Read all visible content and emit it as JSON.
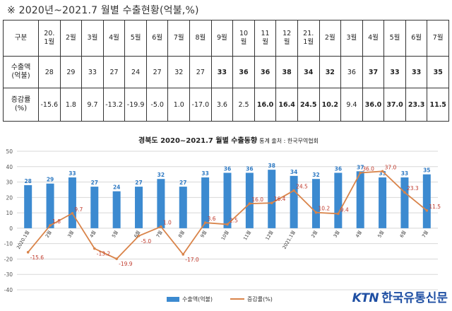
{
  "header": {
    "title": "※ 2020년~2021.7 월별 수출현황(억불,%)"
  },
  "table": {
    "label_col": "구분",
    "months": [
      "20.\n1월",
      "2월",
      "3월",
      "4월",
      "5월",
      "6월",
      "7월",
      "8월",
      "9월",
      "10\n월",
      "11\n월",
      "12\n월",
      "21.\n1월",
      "2월",
      "3월",
      "4월",
      "5월",
      "6월",
      "7월"
    ],
    "export_label": "수출액\n(억불)",
    "export_values": [
      "28",
      "29",
      "33",
      "27",
      "24",
      "27",
      "32",
      "27",
      "33",
      "36",
      "36",
      "38",
      "34",
      "32",
      "36",
      "37",
      "33",
      "33",
      "35"
    ],
    "change_label": "증감률\n(%)",
    "change_values": [
      "-15.6",
      "1.8",
      "9.7",
      "-13.2",
      "-19.9",
      "-5.0",
      "1.0",
      "-17.0",
      "3.6",
      "2.5",
      "16.0",
      "16.4",
      "24.5",
      "10.2",
      "9.4",
      "36.0",
      "37.0",
      "23.3",
      "11.5"
    ],
    "bold_export": [
      8,
      9,
      10,
      11,
      12,
      13,
      15,
      16,
      17,
      18
    ],
    "bold_change": [
      10,
      11,
      12,
      13,
      15,
      16,
      17,
      18
    ]
  },
  "chart_data": {
    "type": "bar+line",
    "title": "경북도 2020~2021.7 월별 수출동향",
    "source": "· 통계 출처 : 한국무역협회",
    "categories": [
      "2020.1월",
      "2월",
      "3월",
      "4월",
      "5월",
      "6월",
      "7월",
      "8월",
      "9월",
      "10월",
      "11월",
      "12월",
      "2021.1월",
      "2월",
      "3월",
      "4월",
      "5월",
      "6월",
      "7월"
    ],
    "series": [
      {
        "name": "수출액(억불)",
        "kind": "bar",
        "values": [
          28,
          29,
          33,
          27,
          24,
          27,
          32,
          27,
          33,
          36,
          36,
          38,
          34,
          32,
          36,
          37,
          33,
          33,
          35
        ],
        "labels": [
          "28",
          "29",
          "33",
          "27",
          "24",
          "27",
          "32",
          "27",
          "33",
          "36",
          "36",
          "38",
          "34",
          "32",
          "36",
          "37",
          "33",
          "33",
          "35"
        ]
      },
      {
        "name": "증감률(%)",
        "kind": "line",
        "values": [
          -15.6,
          1.8,
          9.7,
          -13.2,
          -19.9,
          -5.0,
          1.0,
          -17.0,
          3.6,
          2.5,
          16.0,
          16.4,
          24.5,
          10.2,
          9.4,
          36.0,
          37.0,
          23.3,
          11.5
        ],
        "labels": [
          "-15.6",
          "1.8",
          "9.7",
          "-13.2",
          "-19.9",
          "-5.0",
          "1.0",
          "-17.0",
          "3.6",
          "2.5",
          "16.0",
          "16.4",
          "24.5",
          "10.2",
          "9.4",
          "36.0",
          "37.0",
          "23.3",
          "11.5"
        ]
      }
    ],
    "yticks": [
      "50",
      "40",
      "30",
      "20",
      "10",
      "0",
      "-10",
      "-20",
      "-30",
      "-40"
    ],
    "ylim": [
      -40,
      50
    ],
    "grid": true,
    "legend": "bottom",
    "colors": {
      "bar": "#3c8ad0",
      "line": "#d9844a",
      "line_label": "#c0392b",
      "bar_label": "#2f7ac3"
    }
  },
  "logo": {
    "brand": "KTN",
    "name": "한국유통신문"
  }
}
